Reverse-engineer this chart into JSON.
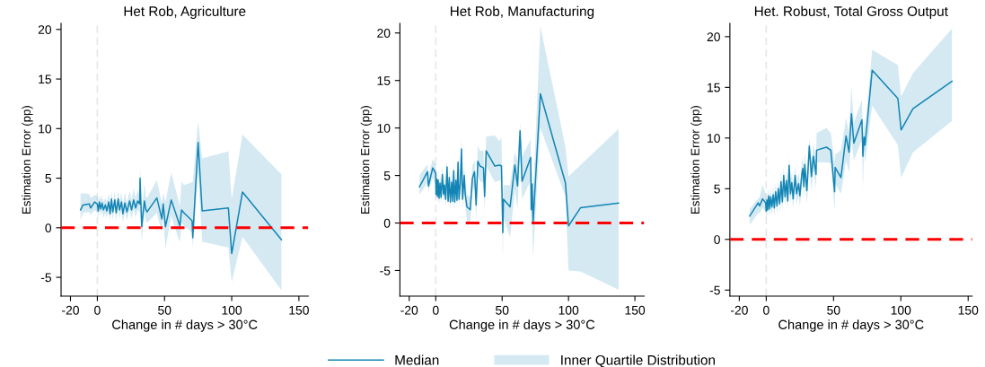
{
  "chart_data": [
    {
      "type": "line",
      "title": "Het Rob, Agriculture",
      "xlabel": "Change in # days > 30°C",
      "ylabel": "Estimation Error (pp)",
      "xlim": [
        -27,
        157
      ],
      "ylim": [
        -6.9,
        20.6
      ],
      "xticks": [
        -20,
        0,
        50,
        100,
        150
      ],
      "yticks": [
        -5,
        0,
        5,
        10,
        15,
        20
      ],
      "grid": false,
      "ref_lines": [
        {
          "axis": "x",
          "value": 0,
          "color": "#e6e6e6",
          "line_style": "dashed"
        },
        {
          "axis": "y",
          "value": 0,
          "color": "#ff0000",
          "line_style": "dashed"
        }
      ],
      "x": [
        -12.5,
        -10.7,
        -6,
        -5,
        -2,
        0,
        0.7,
        1.5,
        2.5,
        3.5,
        4.5,
        6,
        7,
        8.5,
        9.5,
        10.5,
        11.5,
        13,
        14,
        15.5,
        16.5,
        18,
        19,
        20.5,
        22,
        24,
        25.5,
        27,
        28.5,
        30,
        31.5,
        31.8,
        33,
        35,
        36,
        37,
        44.3,
        48,
        49,
        50.7,
        55,
        61.4,
        62.7,
        64.5,
        70.5,
        71,
        75,
        78,
        97.5,
        100,
        108,
        137
      ],
      "series": [
        {
          "color": "#1385b5",
          "values": [
            1.8,
            2.3,
            2.4,
            2.0,
            2.6,
            2.4,
            1.7,
            2.6,
            1.9,
            2.5,
            1.8,
            2.3,
            1.7,
            2.6,
            1.4,
            2.9,
            1.6,
            2.8,
            1.5,
            2.9,
            1.8,
            2.6,
            1.4,
            2.5,
            1.6,
            2.7,
            1.8,
            2.8,
            2.0,
            2.7,
            2.4,
            5.0,
            0.1,
            2.7,
            1.9,
            1.6,
            3.0,
            0.9,
            2.4,
            0.1,
            2.8,
            0.2,
            1.8,
            1.5,
            0.7,
            -1.0,
            8.6,
            1.7,
            2.0,
            -2.6,
            3.6,
            -1.2
          ],
          "lower": [
            0.8,
            1.5,
            1.6,
            1.3,
            1.8,
            1.6,
            1.0,
            1.8,
            1.2,
            1.7,
            1.0,
            1.5,
            1.0,
            1.8,
            0.7,
            2.0,
            0.8,
            2.0,
            0.7,
            2.0,
            0.9,
            1.8,
            0.5,
            1.6,
            0.8,
            1.8,
            0.9,
            1.9,
            1.0,
            1.8,
            1.5,
            3.8,
            -1.5,
            1.5,
            0.8,
            0.5,
            1.5,
            -0.5,
            1.0,
            -2.1,
            1.2,
            -1.5,
            0.5,
            0.2,
            -0.5,
            -2.0,
            5.5,
            -1.4,
            -2.0,
            -5.5,
            -0.9,
            -6.3
          ],
          "upper": [
            3.4,
            3.5,
            3.4,
            3.0,
            3.3,
            3.2,
            2.6,
            3.2,
            2.8,
            3.3,
            2.6,
            3.0,
            2.6,
            3.5,
            2.3,
            3.8,
            2.4,
            3.7,
            2.3,
            3.8,
            2.6,
            3.6,
            2.3,
            3.6,
            2.5,
            3.7,
            2.8,
            4.0,
            3.0,
            3.8,
            3.2,
            6.4,
            1.5,
            4.5,
            3.2,
            3.0,
            4.8,
            2.5,
            3.5,
            2.6,
            5.6,
            2.2,
            4.7,
            4.3,
            4.6,
            4.6,
            10.8,
            7.0,
            7.7,
            2.9,
            9.4,
            5.4
          ]
        }
      ]
    },
    {
      "type": "line",
      "title": "Het Rob, Manufacturing",
      "xlabel": "Change in # days > 30°C",
      "ylabel": "Estimation Error (pp)",
      "xlim": [
        -27,
        157
      ],
      "ylim": [
        -7.7,
        21
      ],
      "xticks": [
        -20,
        0,
        50,
        100,
        150
      ],
      "yticks": [
        -5,
        0,
        5,
        10,
        15,
        20
      ],
      "grid": false,
      "legend": "bottom",
      "annotations": [
        "Inner Quartile Distribution"
      ],
      "ref_lines": [
        {
          "axis": "x",
          "value": 0,
          "color": "#e6e6e6",
          "line_style": "dashed"
        },
        {
          "axis": "y",
          "value": 0,
          "color": "#ff0000",
          "line_style": "dashed"
        }
      ],
      "x": [
        -12.3,
        -6.2,
        -5.5,
        -2.3,
        0,
        0.2,
        0.8,
        1.3,
        1.8,
        2.5,
        3.2,
        4,
        5,
        5.8,
        6.5,
        7.5,
        8.5,
        9.3,
        10.2,
        11,
        12,
        12.8,
        13.5,
        14.3,
        15.2,
        16,
        16.8,
        17.5,
        18.5,
        19.4,
        20.2,
        21.5,
        22.2,
        23.5,
        26,
        27.6,
        29.2,
        30.4,
        31.7,
        33.3,
        36,
        36.8,
        38,
        44.5,
        48,
        49.5,
        50.5,
        51,
        56,
        59.6,
        61.6,
        63.5,
        65,
        71.5,
        71.9,
        72.6,
        73.3,
        78.8,
        97.7,
        100,
        109,
        137.7
      ],
      "series": [
        {
          "name": "Median",
          "color": "#1385b5",
          "values": [
            3.8,
            5.4,
            3.9,
            5.8,
            5.2,
            3.0,
            4.6,
            2.8,
            4.5,
            2.6,
            4.2,
            2.7,
            5.1,
            3.0,
            4.0,
            2.5,
            5.9,
            2.3,
            4.8,
            2.2,
            4.3,
            2.3,
            5.5,
            2.2,
            4.5,
            2.4,
            6.4,
            2.5,
            4.2,
            7.8,
            2.5,
            5.0,
            3.0,
            1.7,
            1.4,
            4.7,
            5.4,
            1.9,
            6.5,
            6.0,
            5.8,
            2.8,
            7.6,
            6.0,
            6.1,
            6.0,
            -1.0,
            2.5,
            1.7,
            6.1,
            3.9,
            9.7,
            4.4,
            6.9,
            1.4,
            4.1,
            0.0,
            13.6,
            4.2,
            -0.3,
            1.6,
            2.1
          ],
          "lower": [
            3.0,
            4.2,
            3.3,
            4.8,
            4.0,
            2.3,
            3.6,
            2.0,
            3.5,
            1.9,
            3.2,
            2.0,
            4.0,
            2.2,
            3.0,
            1.8,
            4.8,
            1.5,
            3.8,
            1.4,
            3.2,
            1.5,
            4.4,
            1.4,
            3.4,
            1.5,
            5.2,
            1.6,
            3.1,
            6.4,
            1.5,
            3.8,
            2.0,
            0.2,
            0.1,
            3.3,
            3.9,
            0.3,
            5.0,
            4.4,
            4.2,
            1.2,
            6.0,
            4.3,
            4.5,
            4.3,
            -3.8,
            0.5,
            -1.5,
            3.5,
            1.5,
            7.0,
            2.5,
            4.5,
            -1.0,
            1.0,
            -3.7,
            10.0,
            2.8,
            -5.0,
            -5.1,
            -7.0
          ],
          "upper": [
            5.0,
            6.2,
            5.0,
            6.7,
            6.2,
            4.2,
            5.6,
            3.8,
            5.5,
            3.6,
            5.2,
            3.7,
            6.0,
            4.0,
            5.0,
            3.5,
            6.8,
            3.3,
            5.8,
            3.2,
            5.4,
            3.4,
            6.6,
            3.3,
            5.6,
            3.5,
            7.5,
            3.6,
            5.4,
            9.0,
            3.7,
            6.2,
            4.2,
            3.0,
            2.8,
            6.0,
            6.6,
            3.4,
            8.2,
            7.6,
            7.6,
            4.4,
            9.1,
            9.2,
            8.6,
            9.0,
            1.5,
            4.0,
            4.0,
            7.5,
            6.5,
            10.6,
            7.0,
            8.8,
            3.5,
            6.0,
            3.0,
            20.7,
            8.0,
            4.9,
            6.1,
            9.9
          ]
        }
      ]
    },
    {
      "type": "line",
      "title": "Het. Robust, Total Gross Output",
      "xlabel": "Change in # days > 30°C",
      "ylabel": "Estimation Error (pp)",
      "xlim": [
        -27,
        153
      ],
      "ylim": [
        -5.6,
        21.3
      ],
      "xticks": [
        -20,
        0,
        50,
        100,
        150
      ],
      "yticks": [
        -5,
        0,
        5,
        10,
        15,
        20
      ],
      "grid": false,
      "ref_lines": [
        {
          "axis": "x",
          "value": 0,
          "color": "#e6e6e6",
          "line_style": "dashed"
        },
        {
          "axis": "y",
          "value": 0,
          "color": "#ff0000",
          "line_style": "dashed"
        }
      ],
      "x": [
        -12.3,
        -6,
        -4.9,
        -2.7,
        -0.4,
        0,
        0.5,
        1,
        1.8,
        2.5,
        3.3,
        4.2,
        5.2,
        6,
        7,
        8,
        9,
        10,
        11,
        12,
        13,
        14,
        15,
        16,
        17,
        18,
        19,
        20,
        21.5,
        22.5,
        24,
        25,
        26.5,
        27.2,
        28,
        28.6,
        30.2,
        32,
        33.6,
        35,
        37,
        37.4,
        44.7,
        48,
        50.8,
        51.2,
        55.5,
        59.3,
        61.5,
        63.3,
        65.1,
        71.1,
        71.8,
        72.7,
        73.4,
        78.7,
        97.8,
        100.2,
        109,
        138
      ],
      "series": [
        {
          "color": "#1385b5",
          "values": [
            2.3,
            3.6,
            3.3,
            4.0,
            3.6,
            2.8,
            3.9,
            2.9,
            4.3,
            3.0,
            4.2,
            3.2,
            4.4,
            3.1,
            4.7,
            3.3,
            5.0,
            3.5,
            5.7,
            3.7,
            6.3,
            4.2,
            5.8,
            3.8,
            7.3,
            4.5,
            5.6,
            4.0,
            6.3,
            4.5,
            5.5,
            4.3,
            6.5,
            7.0,
            5.2,
            7.4,
            4.8,
            9.2,
            6.2,
            8.2,
            6.4,
            8.8,
            9.1,
            8.8,
            4.7,
            7.1,
            6.1,
            10.2,
            8.6,
            12.4,
            9.5,
            11.8,
            8.2,
            10.1,
            9.3,
            16.7,
            13.9,
            10.8,
            12.9,
            15.6
          ],
          "lower": [
            1.4,
            2.6,
            2.6,
            3.1,
            2.7,
            2.0,
            3.1,
            2.1,
            3.5,
            2.2,
            3.4,
            2.4,
            3.5,
            2.3,
            3.8,
            2.5,
            4.1,
            2.6,
            4.7,
            2.8,
            5.3,
            3.3,
            4.8,
            2.9,
            6.2,
            3.5,
            4.6,
            3.0,
            5.2,
            3.4,
            4.4,
            3.2,
            5.3,
            5.8,
            4.0,
            6.0,
            3.5,
            7.5,
            4.8,
            6.8,
            5.0,
            7.6,
            7.6,
            7.5,
            2.8,
            5.5,
            4.5,
            7.8,
            6.6,
            9.8,
            7.8,
            9.8,
            5.0,
            8.8,
            7.5,
            13.2,
            9.3,
            6.1,
            8.6,
            11.7
          ],
          "upper": [
            3.0,
            4.0,
            4.2,
            5.4,
            4.5,
            3.5,
            4.7,
            3.7,
            5.1,
            3.8,
            5.0,
            4.0,
            5.3,
            4.0,
            5.6,
            4.2,
            5.9,
            4.4,
            6.6,
            4.6,
            7.2,
            5.1,
            6.8,
            4.8,
            8.2,
            5.5,
            6.6,
            5.0,
            7.3,
            5.5,
            6.6,
            5.4,
            7.6,
            8.2,
            6.5,
            8.6,
            6.2,
            10.0,
            7.6,
            9.5,
            7.8,
            10.5,
            11.0,
            10.5,
            7.5,
            8.4,
            8.8,
            12.0,
            10.5,
            15.0,
            11.5,
            13.8,
            10.0,
            12.0,
            10.8,
            18.7,
            17.2,
            14.1,
            16.4,
            20.8
          ]
        }
      ]
    }
  ]
}
